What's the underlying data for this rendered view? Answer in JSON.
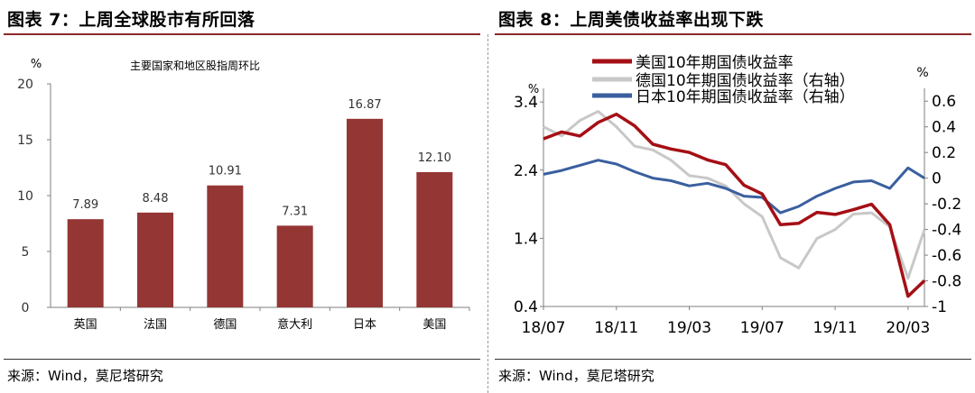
{
  "left": {
    "title": "图表 7：上周全球股市有所回落",
    "source": "来源：Wind，莫尼塔研究"
  },
  "right": {
    "title": "图表 8：上周美债收益率出现下跌",
    "source": "来源：Wind，莫尼塔研究"
  },
  "chart_data": [
    {
      "type": "bar",
      "title": "主要国家和地区股指周环比",
      "ylabel": "%",
      "categories": [
        "英国",
        "法国",
        "德国",
        "意大利",
        "日本",
        "美国"
      ],
      "values": [
        7.89,
        8.48,
        10.91,
        7.31,
        16.87,
        12.1
      ],
      "value_labels": [
        "7.89",
        "8.48",
        "10.91",
        "7.31",
        "16.87",
        "12.10"
      ],
      "ylim": [
        0,
        20
      ],
      "yticks": [
        "0",
        "5",
        "10",
        "15",
        "20"
      ],
      "bar_color": "#943634",
      "grid": false
    },
    {
      "type": "line",
      "x_ticks": [
        "18/07",
        "18/11",
        "19/03",
        "19/07",
        "19/11",
        "20/03"
      ],
      "left_axis_unit": "%",
      "left_ylim": [
        0.4,
        3.6
      ],
      "left_yticks": [
        "0.4",
        "1.4",
        "2.4",
        "3.4"
      ],
      "right_axis_unit": "%",
      "right_ylim": [
        -1.0,
        0.7
      ],
      "right_yticks": [
        "0.6",
        "0.4",
        "0.2",
        "0",
        "-0.2",
        "-0.4",
        "-0.6",
        "-0.8",
        "-1"
      ],
      "legend_position": "top",
      "grid": false,
      "series": [
        {
          "name": "美国10年期国债收益率",
          "axis": "left",
          "color": "#a50f15",
          "values": [
            [
              "18/07",
              2.86
            ],
            [
              "18/08",
              2.96
            ],
            [
              "18/09",
              2.9
            ],
            [
              "18/10",
              3.1
            ],
            [
              "18/11",
              3.22
            ],
            [
              "18/12",
              3.05
            ],
            [
              "19/01",
              2.78
            ],
            [
              "19/02",
              2.71
            ],
            [
              "19/03",
              2.66
            ],
            [
              "19/04",
              2.55
            ],
            [
              "19/05",
              2.48
            ],
            [
              "19/06",
              2.18
            ],
            [
              "19/07",
              2.05
            ],
            [
              "19/08",
              1.6
            ],
            [
              "19/09",
              1.62
            ],
            [
              "19/10",
              1.78
            ],
            [
              "19/11",
              1.75
            ],
            [
              "19/12",
              1.82
            ],
            [
              "20/01",
              1.9
            ],
            [
              "20/02",
              1.6
            ],
            [
              "20/03",
              0.55
            ],
            [
              "20/03",
              0.78
            ]
          ]
        },
        {
          "name": "德国10年期国债收益率（右轴）",
          "axis": "right",
          "color": "#c8c8c8",
          "values": [
            [
              "18/07",
              0.4
            ],
            [
              "18/08",
              0.33
            ],
            [
              "18/09",
              0.45
            ],
            [
              "18/10",
              0.52
            ],
            [
              "18/11",
              0.4
            ],
            [
              "18/12",
              0.25
            ],
            [
              "19/01",
              0.22
            ],
            [
              "19/02",
              0.14
            ],
            [
              "19/03",
              0.02
            ],
            [
              "19/04",
              0.0
            ],
            [
              "19/05",
              -0.06
            ],
            [
              "19/06",
              -0.2
            ],
            [
              "19/07",
              -0.3
            ],
            [
              "19/08",
              -0.62
            ],
            [
              "19/09",
              -0.7
            ],
            [
              "19/10",
              -0.47
            ],
            [
              "19/11",
              -0.4
            ],
            [
              "19/12",
              -0.28
            ],
            [
              "20/01",
              -0.27
            ],
            [
              "20/02",
              -0.38
            ],
            [
              "20/03",
              -0.78
            ],
            [
              "20/03",
              -0.4
            ]
          ]
        },
        {
          "name": "日本10年期国债收益率（右轴）",
          "axis": "right",
          "color": "#3a5f9f",
          "values": [
            [
              "18/07",
              0.03
            ],
            [
              "18/08",
              0.06
            ],
            [
              "18/09",
              0.1
            ],
            [
              "18/10",
              0.14
            ],
            [
              "18/11",
              0.11
            ],
            [
              "18/12",
              0.05
            ],
            [
              "19/01",
              0.0
            ],
            [
              "19/02",
              -0.02
            ],
            [
              "19/03",
              -0.06
            ],
            [
              "19/04",
              -0.04
            ],
            [
              "19/05",
              -0.08
            ],
            [
              "19/06",
              -0.14
            ],
            [
              "19/07",
              -0.15
            ],
            [
              "19/08",
              -0.27
            ],
            [
              "19/09",
              -0.22
            ],
            [
              "19/10",
              -0.14
            ],
            [
              "19/11",
              -0.08
            ],
            [
              "19/12",
              -0.03
            ],
            [
              "20/01",
              -0.02
            ],
            [
              "20/02",
              -0.08
            ],
            [
              "20/03",
              0.08
            ],
            [
              "20/03",
              0.0
            ]
          ]
        }
      ]
    }
  ]
}
